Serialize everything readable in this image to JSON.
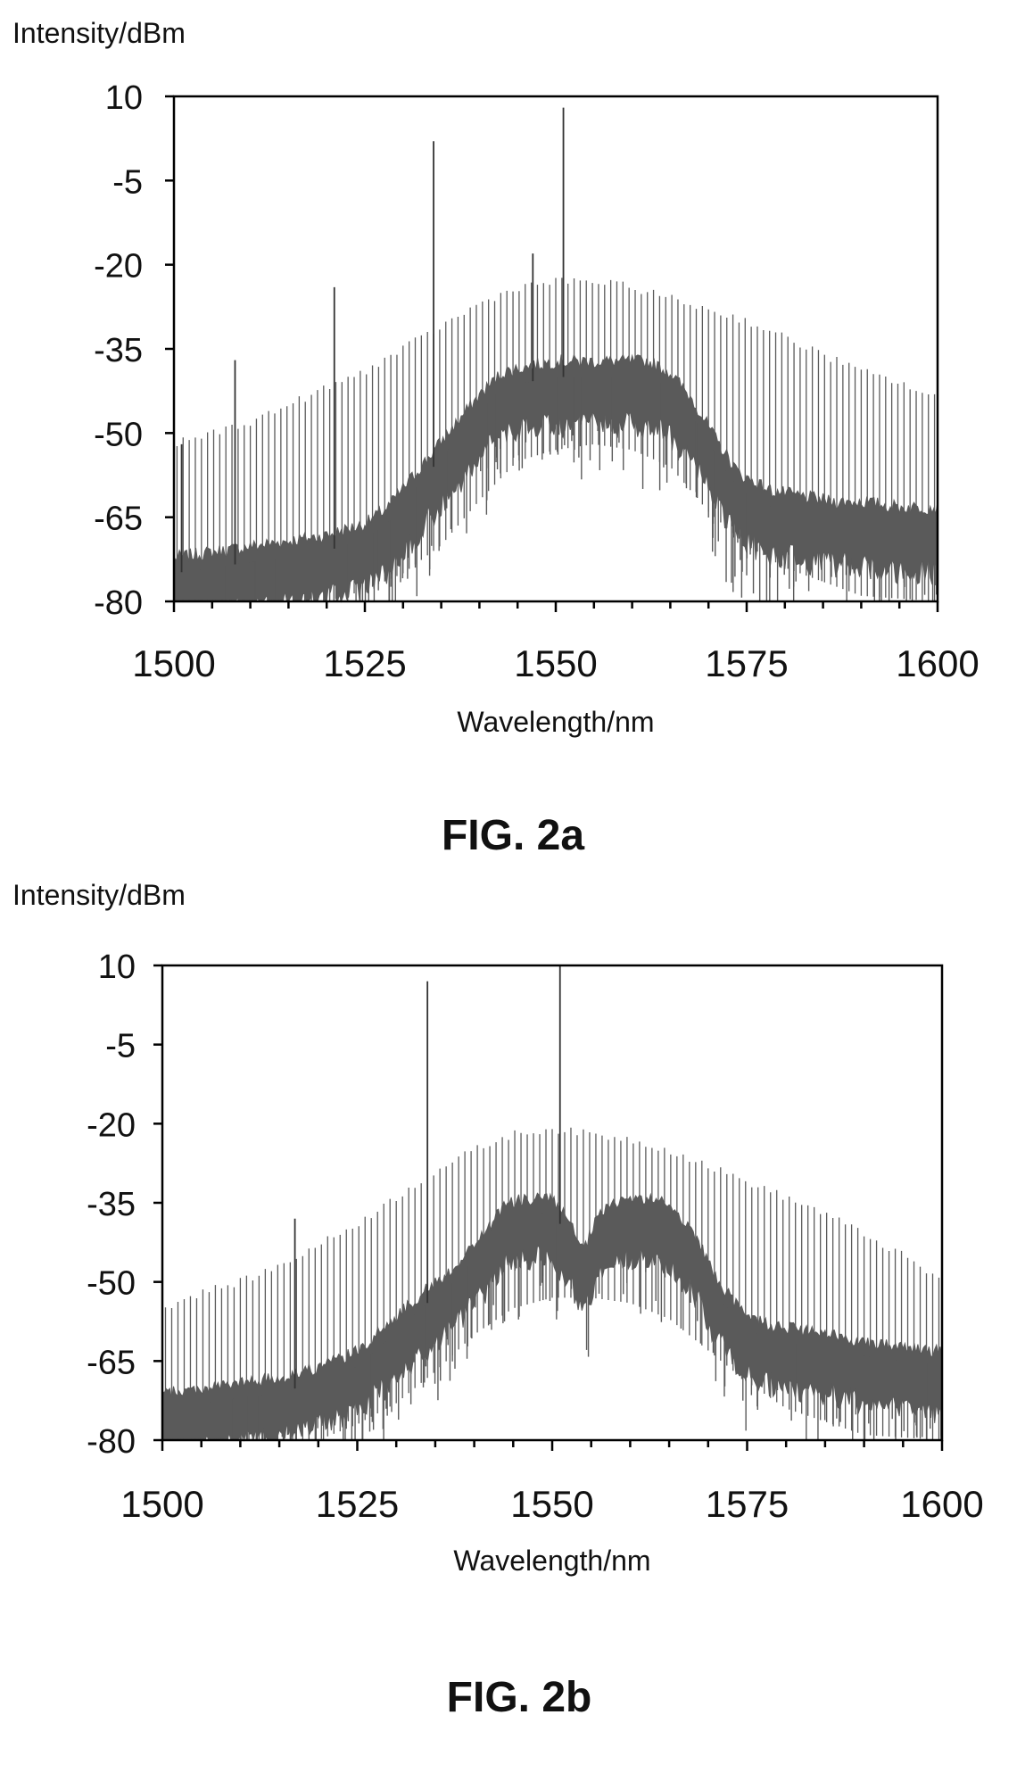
{
  "figures": [
    {
      "caption": "FIG. 2a"
    },
    {
      "caption": "FIG. 2b"
    }
  ],
  "colors": {
    "trace": "#5a5a5a",
    "axis": "#000000",
    "text": "#111111"
  },
  "chart_data": [
    {
      "type": "line",
      "title": "",
      "xlabel": "Wavelength/nm",
      "ylabel": "Intensity/dBm",
      "xlim": [
        1500,
        1600
      ],
      "ylim": [
        -80,
        10
      ],
      "x_ticks": [
        "1500",
        "1525",
        "1550",
        "1575",
        "1600"
      ],
      "y_ticks": [
        "10",
        "-5",
        "-20",
        "-35",
        "-50",
        "-65",
        "-80"
      ],
      "grid": false,
      "legend": "none",
      "series": [
        {
          "role": "comb envelope (line peaks)",
          "x": [
            1500,
            1505,
            1510,
            1515,
            1520,
            1525,
            1530,
            1535,
            1540,
            1545,
            1550,
            1555,
            1560,
            1565,
            1570,
            1575,
            1580,
            1585,
            1590,
            1595,
            1600
          ],
          "y": [
            -52,
            -50,
            -48,
            -45,
            -42,
            -39,
            -35,
            -31,
            -27,
            -24,
            -23,
            -23,
            -24,
            -26,
            -28,
            -30,
            -33,
            -36,
            -39,
            -41,
            -44
          ]
        },
        {
          "role": "comb envelope (line floor)",
          "x": [
            1500,
            1510,
            1520,
            1525,
            1530,
            1535,
            1540,
            1545,
            1550,
            1555,
            1560,
            1565,
            1570,
            1575,
            1580,
            1590,
            1600
          ],
          "y": [
            -80,
            -80,
            -80,
            -78,
            -75,
            -70,
            -62,
            -55,
            -53,
            -52,
            -53,
            -56,
            -64,
            -70,
            -74,
            -79,
            -80
          ]
        },
        {
          "role": "broadband background",
          "x": [
            1500,
            1505,
            1510,
            1515,
            1520,
            1525,
            1528,
            1531,
            1534,
            1537,
            1540,
            1543,
            1546,
            1550,
            1554,
            1558,
            1562,
            1565,
            1568,
            1571,
            1574,
            1578,
            1582,
            1586,
            1590,
            1595,
            1600
          ],
          "y": [
            -75,
            -74,
            -73,
            -72,
            -71,
            -69,
            -66,
            -61,
            -56,
            -51,
            -46,
            -42,
            -41,
            -40,
            -40,
            -40,
            -40,
            -42,
            -47,
            -54,
            -60,
            -63,
            -64,
            -65,
            -65,
            -66,
            -66
          ]
        },
        {
          "role": "spikes",
          "x": [
            1501,
            1508,
            1521,
            1534,
            1547,
            1551
          ],
          "y": [
            -52,
            -37,
            -24,
            2,
            -18,
            8
          ]
        }
      ]
    },
    {
      "type": "line",
      "title": "",
      "xlabel": "Wavelength/nm",
      "ylabel": "Intensity/dBm",
      "xlim": [
        1500,
        1600
      ],
      "ylim": [
        -80,
        10
      ],
      "x_ticks": [
        "1500",
        "1525",
        "1550",
        "1575",
        "1600"
      ],
      "y_ticks": [
        "10",
        "-5",
        "-20",
        "-35",
        "-50",
        "-65",
        "-80"
      ],
      "grid": false,
      "legend": "none",
      "series": [
        {
          "role": "comb envelope (line peaks)",
          "x": [
            1500,
            1505,
            1510,
            1515,
            1520,
            1525,
            1530,
            1535,
            1540,
            1545,
            1550,
            1555,
            1560,
            1565,
            1570,
            1575,
            1580,
            1585,
            1590,
            1595,
            1600
          ],
          "y": [
            -55,
            -52,
            -50,
            -47,
            -43,
            -39,
            -34,
            -29,
            -25,
            -22,
            -21,
            -22,
            -23,
            -25,
            -28,
            -31,
            -34,
            -37,
            -41,
            -45,
            -50
          ]
        },
        {
          "role": "comb envelope (line floor)",
          "x": [
            1500,
            1510,
            1520,
            1525,
            1530,
            1535,
            1540,
            1545,
            1550,
            1555,
            1560,
            1565,
            1570,
            1575,
            1580,
            1590,
            1600
          ],
          "y": [
            -80,
            -80,
            -80,
            -77,
            -73,
            -67,
            -60,
            -55,
            -53,
            -53,
            -54,
            -57,
            -63,
            -69,
            -74,
            -79,
            -80
          ]
        },
        {
          "role": "broadband background",
          "x": [
            1500,
            1505,
            1510,
            1515,
            1520,
            1525,
            1528,
            1531,
            1534,
            1536,
            1538,
            1541,
            1544,
            1547,
            1550,
            1552,
            1554,
            1556,
            1559,
            1562,
            1565,
            1568,
            1571,
            1574,
            1578,
            1582,
            1586,
            1590,
            1595,
            1600
          ],
          "y": [
            -74,
            -73,
            -72,
            -71,
            -69,
            -66,
            -62,
            -58,
            -54,
            -52,
            -49,
            -44,
            -38,
            -37,
            -37,
            -41,
            -47,
            -40,
            -37,
            -37,
            -38,
            -43,
            -52,
            -58,
            -61,
            -62,
            -63,
            -64,
            -65,
            -66
          ]
        },
        {
          "role": "spikes",
          "x": [
            1517,
            1534,
            1551
          ],
          "y": [
            -38,
            7,
            12
          ]
        }
      ]
    }
  ]
}
